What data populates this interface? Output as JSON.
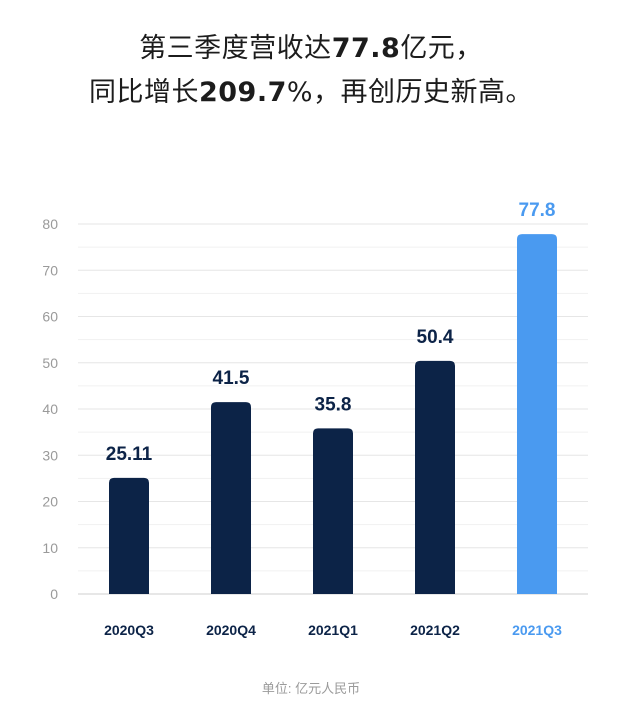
{
  "headline": {
    "line1": {
      "pre": "第三季度营收达",
      "bold": "77.8",
      "post": "亿元，"
    },
    "line2": {
      "pre": "同比增长",
      "bold": "209.7",
      "post": "%，再创历史新高。"
    }
  },
  "unit_label": "单位: 亿元人民币",
  "colors": {
    "dark_bar": "#0c2347",
    "highlight_bar": "#4a9af0",
    "grid": "#e6e6e6"
  },
  "chart_data": {
    "type": "bar",
    "categories": [
      "2020Q3",
      "2020Q4",
      "2021Q1",
      "2021Q2",
      "2021Q3"
    ],
    "values": [
      25.11,
      41.5,
      35.8,
      50.4,
      77.8
    ],
    "data_labels": [
      "25.11",
      "41.5",
      "35.8",
      "50.4",
      "77.8"
    ],
    "highlight_index": 4,
    "ylim": [
      0,
      80
    ],
    "yticks": [
      0,
      10,
      20,
      30,
      40,
      50,
      60,
      70,
      80
    ],
    "grid": true,
    "minor_grid": true
  }
}
